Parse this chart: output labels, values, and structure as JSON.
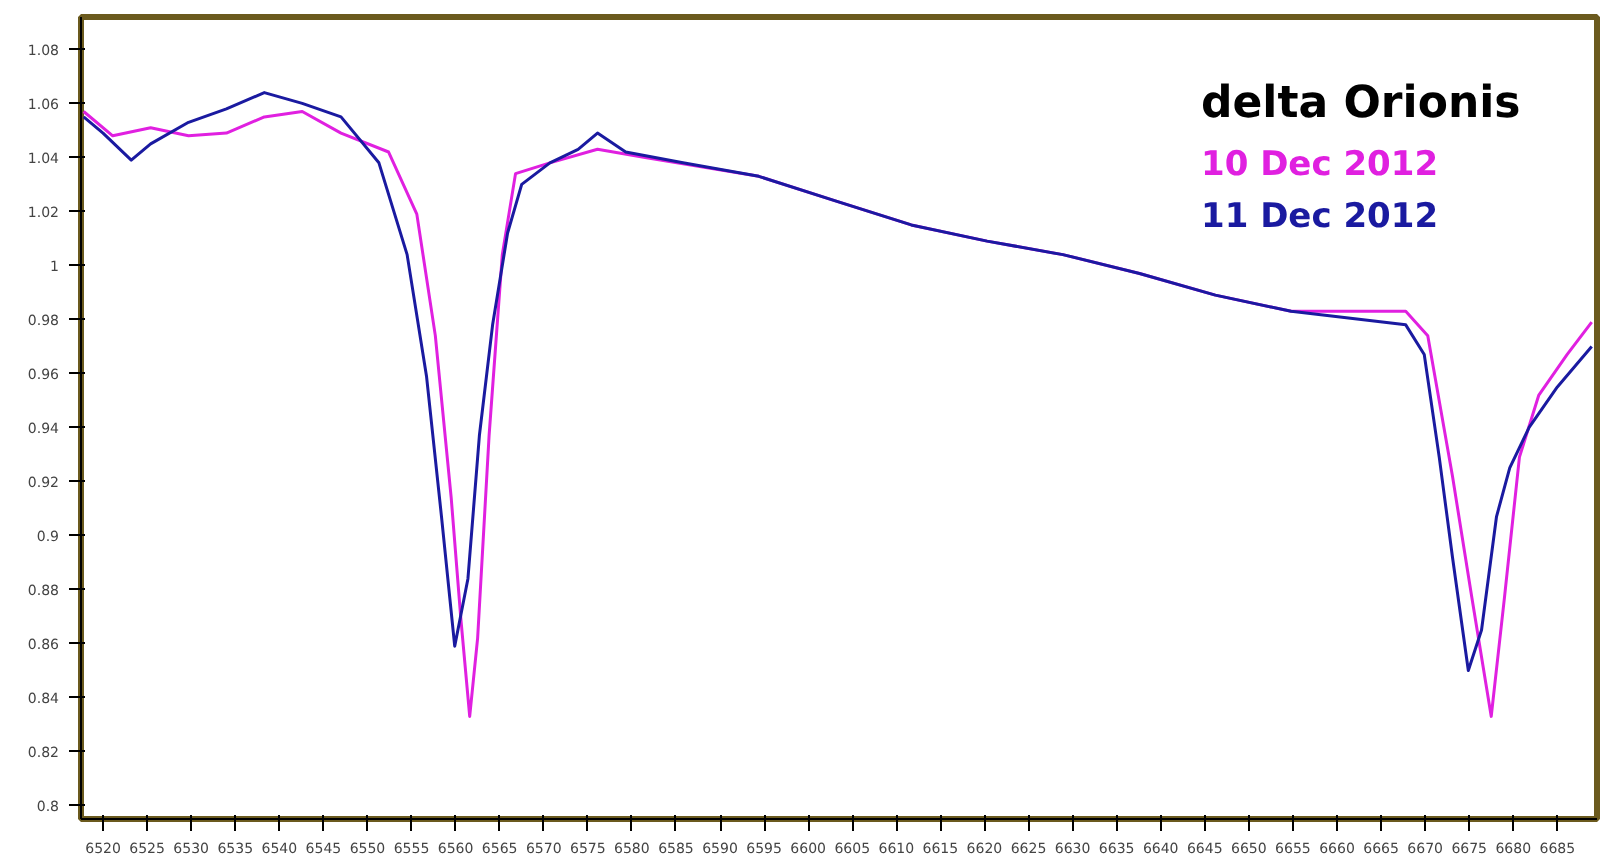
{
  "chart_data": {
    "type": "line",
    "title": "delta Orionis",
    "legend": "top right",
    "grid": false,
    "marker": "none",
    "line_style": "solid",
    "xlim": [
      6517.5,
      6689.5
    ],
    "ylim": [
      0.795,
      1.092
    ],
    "xticks": [
      6520,
      6525,
      6530,
      6535,
      6540,
      6545,
      6550,
      6555,
      6560,
      6565,
      6570,
      6575,
      6580,
      6585,
      6590,
      6595,
      6600,
      6605,
      6610,
      6615,
      6620,
      6625,
      6630,
      6635,
      6640,
      6645,
      6650,
      6655,
      6660,
      6665,
      6670,
      6675,
      6680,
      6685
    ],
    "yticks": [
      0.8,
      0.82,
      0.84,
      0.86,
      0.88,
      0.9,
      0.92,
      0.94,
      0.96,
      0.98,
      1,
      1.02,
      1.04,
      1.06,
      1.08
    ],
    "series": [
      {
        "name": "10 Dec 2012",
        "color": "#e020e0",
        "x": [
          6517.8,
          6521.1,
          6525.4,
          6529.7,
          6534.0,
          6538.3,
          6542.6,
          6547.0,
          6552.4,
          6555.6,
          6557.7,
          6559.5,
          6560.6,
          6561.6,
          6562.5,
          6563.8,
          6565.3,
          6566.8,
          6570.7,
          6576.1,
          6581.5,
          6594.4,
          6603.0,
          6611.7,
          6620.3,
          6628.9,
          6637.6,
          6646.2,
          6654.8,
          6667.8,
          6670.3,
          6673.1,
          6675.3,
          6677.5,
          6679.0,
          6680.7,
          6682.9,
          6686.1,
          6688.9
        ],
        "values": [
          1.057,
          1.048,
          1.051,
          1.048,
          1.049,
          1.055,
          1.057,
          1.049,
          1.042,
          1.019,
          0.974,
          0.914,
          0.869,
          0.833,
          0.862,
          0.937,
          1.004,
          1.034,
          1.038,
          1.043,
          1.04,
          1.033,
          1.024,
          1.015,
          1.009,
          1.004,
          0.997,
          0.989,
          0.983,
          0.983,
          0.974,
          0.922,
          0.877,
          0.833,
          0.877,
          0.929,
          0.952,
          0.967,
          0.979
        ]
      },
      {
        "name": "11 Dec 2012",
        "color": "#1a1aa0",
        "x": [
          6517.8,
          6520,
          6523.2,
          6525.4,
          6529.7,
          6534.0,
          6538.3,
          6542.6,
          6547.0,
          6551.3,
          6554.5,
          6556.7,
          6558.4,
          6559.9,
          6561.4,
          6562.7,
          6564.2,
          6565.9,
          6567.5,
          6570.7,
          6573.9,
          6576.1,
          6579.3,
          6585.8,
          6594.4,
          6603.0,
          6611.7,
          6620.3,
          6628.9,
          6637.6,
          6646.2,
          6654.8,
          6667.8,
          6669.9,
          6671.6,
          6673.1,
          6674.9,
          6676.4,
          6678.1,
          6679.6,
          6681.8,
          6685.0,
          6688.9
        ],
        "values": [
          1.055,
          1.049,
          1.039,
          1.045,
          1.053,
          1.058,
          1.064,
          1.06,
          1.055,
          1.038,
          1.004,
          0.959,
          0.907,
          0.859,
          0.884,
          0.937,
          0.978,
          1.012,
          1.03,
          1.038,
          1.043,
          1.049,
          1.042,
          1.038,
          1.033,
          1.024,
          1.015,
          1.009,
          1.004,
          0.997,
          0.989,
          0.983,
          0.978,
          0.967,
          0.929,
          0.892,
          0.85,
          0.865,
          0.907,
          0.925,
          0.94,
          0.955,
          0.97
        ]
      }
    ]
  }
}
